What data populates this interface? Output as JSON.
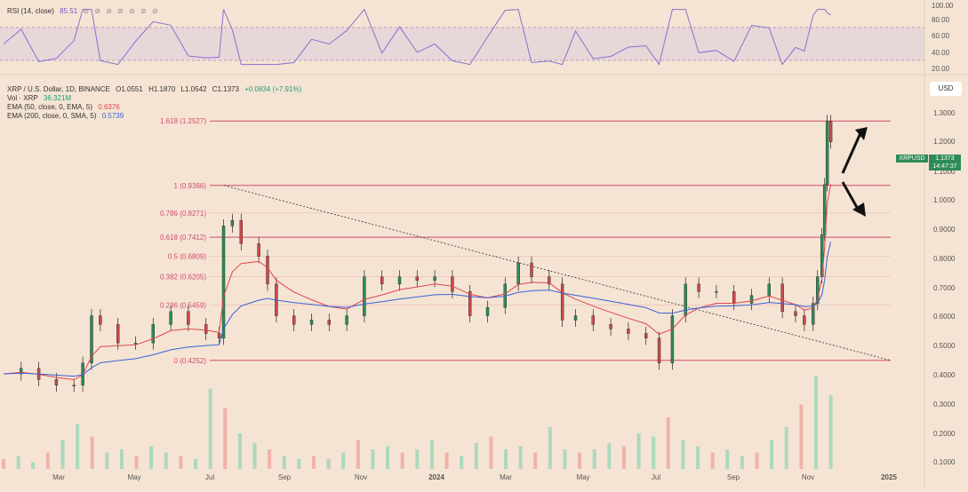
{
  "rsi_panel": {
    "label": "RSI (14, close)",
    "value": "85.51",
    "icons": "⊘ ⊘ ⊘ ⊘ ⊘ ⊘ ⊘",
    "ticks": [
      "100.00",
      "80.00",
      "60.00",
      "40.00",
      "20.00"
    ]
  },
  "legend": {
    "symbol": "XRP / U.S. Dollar, 1D, BINANCE",
    "open": "O1.0551",
    "high": "H1.1870",
    "low": "L1.0542",
    "close": "C1.1373",
    "change": "+0.0834 (+7.91%)",
    "vol_label": "Vol · XRP",
    "vol_value": "36.321M",
    "ema50_label": "EMA (50, close, 0, EMA, 5)",
    "ema50_value": "0.6376",
    "ema200_label": "EMA (200, close, 0, SMA, 5)",
    "ema200_value": "0.5739"
  },
  "currency": "USD",
  "price_tag": {
    "symbol": "XRPUSD",
    "price": "1.1373",
    "countdown": "14:47:37"
  },
  "colors": {
    "background": "#f5e4d3",
    "up": "#2e8b57",
    "down": "#c94a4a",
    "fib": "#d14a6b",
    "ema50": "#e0454e",
    "ema200": "#3a62d8",
    "rsi": "#8a6fd1"
  },
  "chart_data": {
    "type": "candlestick",
    "y_axis": {
      "scale": "log",
      "ticks": [
        "1.3000",
        "1.2000",
        "1.1000",
        "1.0000",
        "0.9000",
        "0.8000",
        "0.7000",
        "0.6000",
        "0.5000",
        "0.4000",
        "0.3000",
        "0.2000",
        "0.1000"
      ],
      "range": [
        0.1,
        1.3
      ]
    },
    "x_axis": {
      "ticks": [
        "Mar",
        "May",
        "Jul",
        "Sep",
        "Nov",
        "2024",
        "Mar",
        "May",
        "Jul",
        "Sep",
        "Nov",
        "2025"
      ]
    },
    "fib_levels": [
      {
        "label": "1.618 (1.2527)",
        "value": 1.2527,
        "line": true
      },
      {
        "label": "1 (0.9366)",
        "value": 0.9366,
        "line": true
      },
      {
        "label": "0.786 (0.8271)",
        "value": 0.8271,
        "line": false
      },
      {
        "label": "0.618 (0.7412)",
        "value": 0.7412,
        "line": true
      },
      {
        "label": "0.5 (0.6809)",
        "value": 0.6809,
        "line": false
      },
      {
        "label": "0.382 (0.6205)",
        "value": 0.6205,
        "line": false
      },
      {
        "label": "0.236 (0.5459)",
        "value": 0.5459,
        "line": false
      },
      {
        "label": "0 (0.4252)",
        "value": 0.4252,
        "line": true
      }
    ],
    "trendline": {
      "from": [
        "Jul 2023",
        0.9366
      ],
      "to": [
        "Jan 2025",
        0.4252
      ]
    },
    "close_series": [
      {
        "t": 0.0,
        "c": 0.4
      },
      {
        "t": 0.02,
        "c": 0.41
      },
      {
        "t": 0.04,
        "c": 0.39
      },
      {
        "t": 0.06,
        "c": 0.38
      },
      {
        "t": 0.08,
        "c": 0.38
      },
      {
        "t": 0.09,
        "c": 0.42
      },
      {
        "t": 0.1,
        "c": 0.52
      },
      {
        "t": 0.11,
        "c": 0.5
      },
      {
        "t": 0.13,
        "c": 0.46
      },
      {
        "t": 0.15,
        "c": 0.46
      },
      {
        "t": 0.17,
        "c": 0.5
      },
      {
        "t": 0.19,
        "c": 0.53
      },
      {
        "t": 0.21,
        "c": 0.5
      },
      {
        "t": 0.23,
        "c": 0.48
      },
      {
        "t": 0.245,
        "c": 0.47
      },
      {
        "t": 0.25,
        "c": 0.78
      },
      {
        "t": 0.26,
        "c": 0.8
      },
      {
        "t": 0.27,
        "c": 0.72
      },
      {
        "t": 0.29,
        "c": 0.68
      },
      {
        "t": 0.3,
        "c": 0.6
      },
      {
        "t": 0.31,
        "c": 0.52
      },
      {
        "t": 0.33,
        "c": 0.5
      },
      {
        "t": 0.35,
        "c": 0.51
      },
      {
        "t": 0.37,
        "c": 0.5
      },
      {
        "t": 0.39,
        "c": 0.52
      },
      {
        "t": 0.41,
        "c": 0.62
      },
      {
        "t": 0.43,
        "c": 0.6
      },
      {
        "t": 0.45,
        "c": 0.62
      },
      {
        "t": 0.47,
        "c": 0.61
      },
      {
        "t": 0.49,
        "c": 0.62
      },
      {
        "t": 0.51,
        "c": 0.58
      },
      {
        "t": 0.53,
        "c": 0.52
      },
      {
        "t": 0.55,
        "c": 0.54
      },
      {
        "t": 0.57,
        "c": 0.6
      },
      {
        "t": 0.585,
        "c": 0.66
      },
      {
        "t": 0.6,
        "c": 0.62
      },
      {
        "t": 0.62,
        "c": 0.6
      },
      {
        "t": 0.635,
        "c": 0.51
      },
      {
        "t": 0.65,
        "c": 0.52
      },
      {
        "t": 0.67,
        "c": 0.5
      },
      {
        "t": 0.69,
        "c": 0.49
      },
      {
        "t": 0.71,
        "c": 0.48
      },
      {
        "t": 0.73,
        "c": 0.47
      },
      {
        "t": 0.745,
        "c": 0.42
      },
      {
        "t": 0.76,
        "c": 0.52
      },
      {
        "t": 0.775,
        "c": 0.6
      },
      {
        "t": 0.79,
        "c": 0.58
      },
      {
        "t": 0.81,
        "c": 0.58
      },
      {
        "t": 0.83,
        "c": 0.55
      },
      {
        "t": 0.85,
        "c": 0.57
      },
      {
        "t": 0.87,
        "c": 0.6
      },
      {
        "t": 0.885,
        "c": 0.53
      },
      {
        "t": 0.9,
        "c": 0.52
      },
      {
        "t": 0.91,
        "c": 0.5
      },
      {
        "t": 0.92,
        "c": 0.55
      },
      {
        "t": 0.925,
        "c": 0.62
      },
      {
        "t": 0.93,
        "c": 0.75
      },
      {
        "t": 0.933,
        "c": 0.94
      },
      {
        "t": 0.936,
        "c": 1.25
      },
      {
        "t": 0.94,
        "c": 1.14
      }
    ],
    "volume_series": [
      0.12,
      0.13,
      0.11,
      0.14,
      0.18,
      0.23,
      0.19,
      0.14,
      0.15,
      0.13,
      0.16,
      0.14,
      0.13,
      0.12,
      0.34,
      0.28,
      0.2,
      0.17,
      0.15,
      0.13,
      0.12,
      0.13,
      0.12,
      0.14,
      0.18,
      0.15,
      0.16,
      0.14,
      0.15,
      0.18,
      0.14,
      0.13,
      0.17,
      0.19,
      0.15,
      0.16,
      0.14,
      0.22,
      0.15,
      0.14,
      0.15,
      0.17,
      0.16,
      0.2,
      0.19,
      0.25,
      0.18,
      0.16,
      0.14,
      0.15,
      0.13,
      0.14,
      0.18,
      0.22,
      0.29,
      0.38,
      0.32
    ],
    "rsi": {
      "overbought": 70,
      "oversold": 30,
      "last": 85.51
    }
  }
}
